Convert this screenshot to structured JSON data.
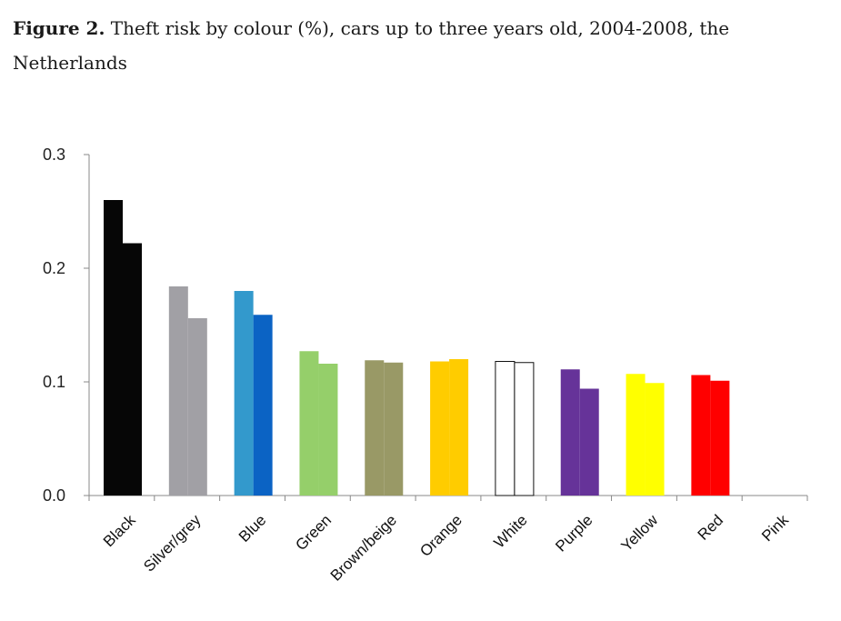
{
  "figure": {
    "label": "Figure 2.",
    "title": "Theft risk by colour (%), cars up to three years old, 2004-2008, the Netherlands"
  },
  "chart_data": {
    "type": "bar",
    "categories": [
      "Black",
      "Silver/grey",
      "Blue",
      "Green",
      "Brown/beige",
      "Orange",
      "White",
      "Purple",
      "Yellow",
      "Red",
      "Pink"
    ],
    "series": [
      {
        "values": [
          0.26,
          0.184,
          0.18,
          0.127,
          0.119,
          0.118,
          0.118,
          0.111,
          0.107,
          0.106,
          null
        ]
      },
      {
        "values": [
          0.222,
          0.156,
          0.159,
          0.116,
          0.117,
          0.12,
          0.117,
          0.094,
          0.099,
          0.101,
          null
        ]
      }
    ],
    "bar_colors": [
      [
        "#060606",
        "#060606"
      ],
      [
        "#a1a0a5",
        "#a1a0a5"
      ],
      [
        "#3399cc",
        "#0b63c4"
      ],
      [
        "#95cf6a",
        "#95cf6a"
      ],
      [
        "#999966",
        "#999966"
      ],
      [
        "#ffcc00",
        "#ffcc00"
      ],
      [
        "#ffffff",
        "#ffffff"
      ],
      [
        "#663399",
        "#663399"
      ],
      [
        "#ffff00",
        "#ffff00"
      ],
      [
        "#ff0000",
        "#ff0000"
      ],
      [
        "#ff99cc",
        "#ff99cc"
      ]
    ],
    "yticks": [
      "0.0",
      "0.1",
      "0.2",
      "0.3"
    ],
    "ylim": [
      0,
      0.3
    ],
    "xlabel": "",
    "ylabel": "",
    "grid": false,
    "legend": "none"
  }
}
